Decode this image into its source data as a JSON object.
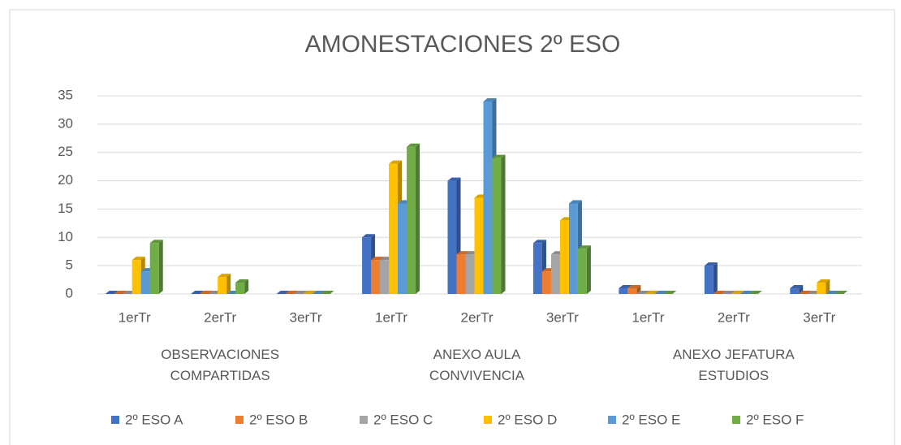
{
  "chart_data": {
    "type": "bar",
    "title": "AMONESTACIONES 2º ESO",
    "groups": [
      {
        "name": "OBSERVACIONES COMPARTIDAS",
        "categories": [
          "1erTr",
          "2erTr",
          "3erTr"
        ]
      },
      {
        "name": "ANEXO AULA CONVIVENCIA",
        "categories": [
          "1erTr",
          "2erTr",
          "3erTr"
        ]
      },
      {
        "name": "ANEXO JEFATURA ESTUDIOS",
        "categories": [
          "1erTr",
          "2erTr",
          "3erTr"
        ]
      }
    ],
    "series": [
      {
        "name": "2º ESO A",
        "color": "#4472c4",
        "values": [
          0,
          0,
          0,
          10,
          20,
          9,
          1,
          5,
          1
        ]
      },
      {
        "name": "2º ESO B",
        "color": "#ed7d31",
        "values": [
          0,
          0,
          0,
          6,
          7,
          4,
          1,
          0,
          0
        ]
      },
      {
        "name": "2º ESO C",
        "color": "#a5a5a5",
        "values": [
          0,
          0,
          0,
          6,
          7,
          7,
          0,
          0,
          0
        ]
      },
      {
        "name": "2º ESO D",
        "color": "#ffc000",
        "values": [
          6,
          3,
          0,
          23,
          17,
          13,
          0,
          0,
          2
        ]
      },
      {
        "name": "2º ESO E",
        "color": "#5b9bd5",
        "values": [
          4,
          0,
          0,
          16,
          34,
          16,
          0,
          0,
          0
        ]
      },
      {
        "name": "2º ESO F",
        "color": "#70ad47",
        "values": [
          9,
          2,
          0,
          26,
          24,
          8,
          0,
          0,
          0
        ]
      }
    ],
    "ylim": [
      0,
      35
    ],
    "yticks": [
      0,
      5,
      10,
      15,
      20,
      25,
      30,
      35
    ],
    "grid": true,
    "legend": "bottom"
  }
}
